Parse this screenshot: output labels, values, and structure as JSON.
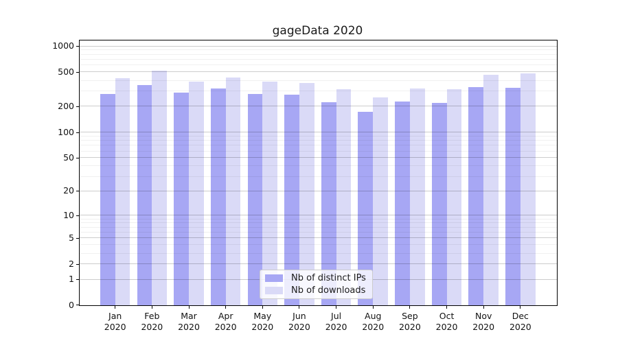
{
  "chart_data": {
    "type": "bar",
    "title": "gageData 2020",
    "categories": [
      "Jan",
      "Feb",
      "Mar",
      "Apr",
      "May",
      "Jun",
      "Jul",
      "Aug",
      "Sep",
      "Oct",
      "Nov",
      "Dec"
    ],
    "category_year": "2020",
    "series": [
      {
        "name": "Nb of distinct IPs",
        "color": "#a7a7f4",
        "values": [
          280,
          355,
          290,
          320,
          280,
          275,
          222,
          172,
          228,
          220,
          335,
          326
        ]
      },
      {
        "name": "Nb of downloads",
        "color": "#dadaf7",
        "values": [
          425,
          520,
          385,
          435,
          390,
          375,
          315,
          252,
          320,
          315,
          467,
          485
        ]
      }
    ],
    "xlabel": "",
    "ylabel": "",
    "yscale": "symlog",
    "ylim": [
      0,
      1160
    ],
    "yticks": [
      1000,
      500,
      200,
      100,
      50,
      20,
      10,
      5,
      2,
      1,
      0
    ],
    "minor_yticks": [
      3,
      4,
      6,
      7,
      8,
      9,
      30,
      40,
      60,
      70,
      80,
      90,
      300,
      400,
      600,
      700,
      800,
      900
    ],
    "grid": true,
    "legend_position": "lower-center"
  },
  "colors": {
    "grid_major": "rgba(0,0,0,0.20)",
    "grid_minor": "rgba(0,0,0,0.06)",
    "axis": "#000000",
    "text": "#111111",
    "background": "#ffffff"
  }
}
